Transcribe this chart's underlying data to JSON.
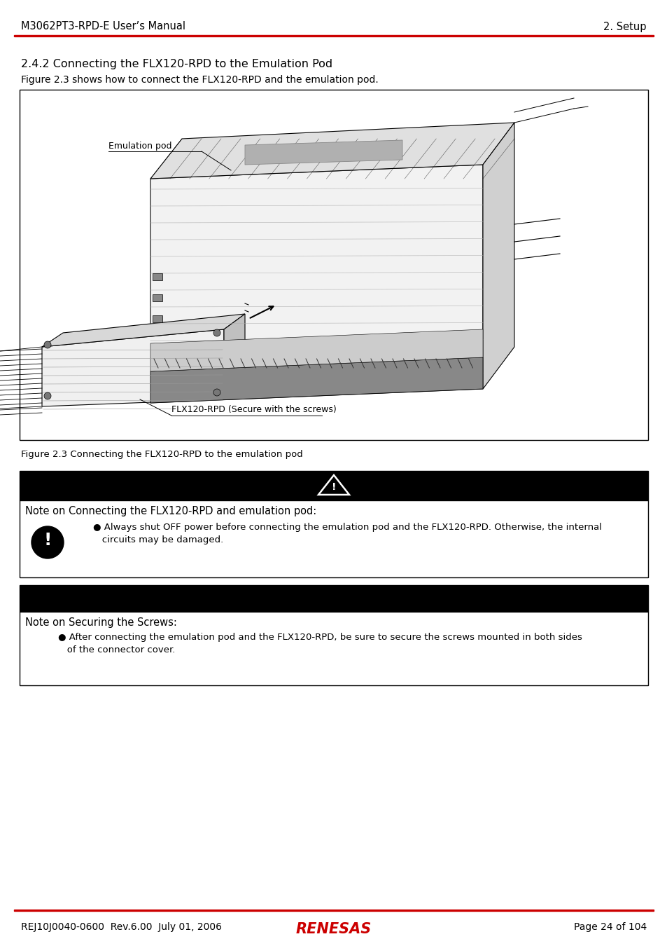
{
  "header_left": "M3062PT3-RPD-E User’s Manual",
  "header_right": "2. Setup",
  "header_line_color": "#cc0000",
  "footer_left": "REJ10J0040-0600  Rev.6.00  July 01, 2006",
  "footer_center": "RENESAS",
  "footer_right": "Page 24 of 104",
  "footer_line_color": "#cc0000",
  "section_title": "2.4.2 Connecting the FLX120-RPD to the Emulation Pod",
  "section_subtitle": "Figure 2.3 shows how to connect the FLX120-RPD and the emulation pod.",
  "figure_caption": "Figure 2.3 Connecting the FLX120-RPD to the emulation pod",
  "caution_header_bg": "#000000",
  "caution_title": "Note on Connecting the FLX120-RPD and emulation pod:",
  "caution_line1": "● Always shut OFF power before connecting the emulation pod and the FLX120-RPD. Otherwise, the internal",
  "caution_line2": "   circuits may be damaged.",
  "important_header_bg": "#000000",
  "important_title": "Note on Securing the Screws:",
  "important_line1": "● After connecting the emulation pod and the FLX120-RPD, be sure to secure the screws mounted in both sides",
  "important_line2": "   of the connector cover.",
  "bg_color": "#ffffff",
  "text_color": "#000000",
  "label_emulation_pod": "Emulation pod",
  "label_flx120": "FLX120-RPD (Secure with the screws)"
}
